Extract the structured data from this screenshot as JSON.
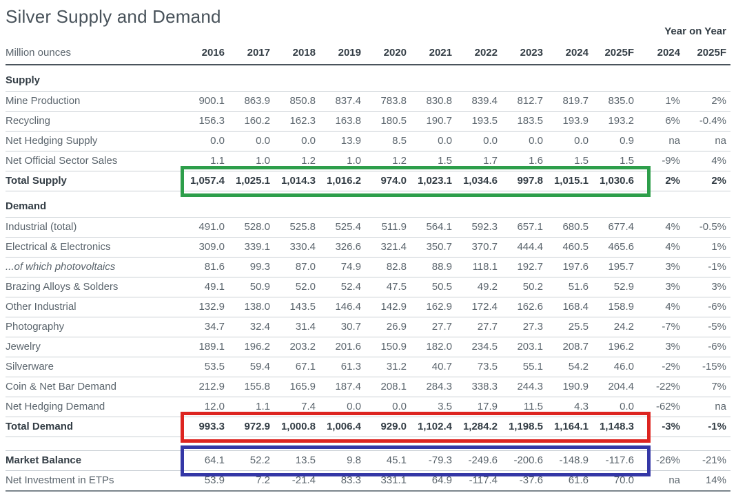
{
  "title": "Silver Supply and Demand",
  "units_label": "Million ounces",
  "year_on_year_label": "Year on Year",
  "chart_data": {
    "type": "table",
    "columns": [
      "2016",
      "2017",
      "2018",
      "2019",
      "2020",
      "2021",
      "2022",
      "2023",
      "2024",
      "2025F"
    ],
    "yoy_columns": [
      "2024",
      "2025F"
    ],
    "sections": [
      {
        "name": "Supply",
        "rows": [
          {
            "label": "Mine Production",
            "values": [
              "900.1",
              "863.9",
              "850.8",
              "837.4",
              "783.8",
              "830.8",
              "839.4",
              "812.7",
              "819.7",
              "835.0"
            ],
            "yoy": [
              "1%",
              "2%"
            ]
          },
          {
            "label": "Recycling",
            "values": [
              "156.3",
              "160.2",
              "162.3",
              "163.8",
              "180.5",
              "190.7",
              "193.5",
              "183.5",
              "193.9",
              "193.2"
            ],
            "yoy": [
              "6%",
              "-0.4%"
            ]
          },
          {
            "label": "Net Hedging Supply",
            "values": [
              "0.0",
              "0.0",
              "0.0",
              "13.9",
              "8.5",
              "0.0",
              "0.0",
              "0.0",
              "0.0",
              "0.9"
            ],
            "yoy": [
              "na",
              "na"
            ]
          },
          {
            "label": "Net Official Sector Sales",
            "values": [
              "1.1",
              "1.0",
              "1.2",
              "1.0",
              "1.2",
              "1.5",
              "1.7",
              "1.6",
              "1.5",
              "1.5"
            ],
            "yoy": [
              "-9%",
              "4%"
            ]
          },
          {
            "label": "Total Supply",
            "bold": true,
            "values": [
              "1,057.4",
              "1,025.1",
              "1,014.3",
              "1,016.2",
              "974.0",
              "1,023.1",
              "1,034.6",
              "997.8",
              "1,015.1",
              "1,030.6"
            ],
            "yoy": [
              "2%",
              "2%"
            ]
          }
        ]
      },
      {
        "name": "Demand",
        "rows": [
          {
            "label": "Industrial (total)",
            "values": [
              "491.0",
              "528.0",
              "525.8",
              "525.4",
              "511.9",
              "564.1",
              "592.3",
              "657.1",
              "680.5",
              "677.4"
            ],
            "yoy": [
              "4%",
              "-0.5%"
            ]
          },
          {
            "label": "Electrical & Electronics",
            "indent": true,
            "values": [
              "309.0",
              "339.1",
              "330.4",
              "326.6",
              "321.4",
              "350.7",
              "370.7",
              "444.4",
              "460.5",
              "465.6"
            ],
            "yoy": [
              "4%",
              "1%"
            ]
          },
          {
            "label": "...of which photovoltaics",
            "indent": true,
            "italic": true,
            "values": [
              "81.6",
              "99.3",
              "87.0",
              "74.9",
              "82.8",
              "88.9",
              "118.1",
              "192.7",
              "197.6",
              "195.7"
            ],
            "yoy": [
              "3%",
              "-1%"
            ]
          },
          {
            "label": "Brazing Alloys & Solders",
            "indent": true,
            "values": [
              "49.1",
              "50.9",
              "52.0",
              "52.4",
              "47.5",
              "50.5",
              "49.2",
              "50.2",
              "51.6",
              "52.9"
            ],
            "yoy": [
              "3%",
              "3%"
            ]
          },
          {
            "label": "Other Industrial",
            "indent": true,
            "values": [
              "132.9",
              "138.0",
              "143.5",
              "146.4",
              "142.9",
              "162.9",
              "172.4",
              "162.6",
              "168.4",
              "158.9"
            ],
            "yoy": [
              "4%",
              "-6%"
            ]
          },
          {
            "label": "Photography",
            "values": [
              "34.7",
              "32.4",
              "31.4",
              "30.7",
              "26.9",
              "27.7",
              "27.7",
              "27.3",
              "25.5",
              "24.2"
            ],
            "yoy": [
              "-7%",
              "-5%"
            ]
          },
          {
            "label": "Jewelry",
            "values": [
              "189.1",
              "196.2",
              "203.2",
              "201.6",
              "150.9",
              "182.0",
              "234.5",
              "203.1",
              "208.7",
              "196.2"
            ],
            "yoy": [
              "3%",
              "-6%"
            ]
          },
          {
            "label": "Silverware",
            "values": [
              "53.5",
              "59.4",
              "67.1",
              "61.3",
              "31.2",
              "40.7",
              "73.5",
              "55.1",
              "54.2",
              "46.0"
            ],
            "yoy": [
              "-2%",
              "-15%"
            ]
          },
          {
            "label": "Coin & Net Bar Demand",
            "values": [
              "212.9",
              "155.8",
              "165.9",
              "187.4",
              "208.1",
              "284.3",
              "338.3",
              "244.3",
              "190.9",
              "204.4"
            ],
            "yoy": [
              "-22%",
              "7%"
            ]
          },
          {
            "label": "Net Hedging Demand",
            "values": [
              "12.0",
              "1.1",
              "7.4",
              "0.0",
              "0.0",
              "3.5",
              "17.9",
              "11.5",
              "4.3",
              "0.0"
            ],
            "yoy": [
              "-62%",
              "na"
            ]
          },
          {
            "label": "Total Demand",
            "bold": true,
            "values": [
              "993.3",
              "972.9",
              "1,000.8",
              "1,006.4",
              "929.0",
              "1,102.4",
              "1,284.2",
              "1,198.5",
              "1,164.1",
              "1,148.3"
            ],
            "yoy": [
              "-3%",
              "-1%"
            ]
          }
        ]
      },
      {
        "name": "",
        "gap_before": true,
        "rows": [
          {
            "label": "Market Balance",
            "bold_label": true,
            "top_rule": true,
            "values": [
              "64.1",
              "52.2",
              "13.5",
              "9.8",
              "45.1",
              "-79.3",
              "-249.6",
              "-200.6",
              "-148.9",
              "-117.6"
            ],
            "yoy": [
              "-26%",
              "-21%"
            ]
          },
          {
            "label": "Net Investment in ETPs",
            "bottom_heavy": true,
            "values": [
              "53.9",
              "7.2",
              "-21.4",
              "83.3",
              "331.1",
              "64.9",
              "-117.4",
              "-37.6",
              "61.6",
              "70.0"
            ],
            "yoy": [
              "na",
              "14%"
            ]
          }
        ]
      }
    ]
  },
  "highlight_boxes": [
    {
      "name": "total-supply-highlight-box",
      "target": "Total Supply",
      "color": "#2d9e4a"
    },
    {
      "name": "total-demand-highlight-box",
      "target": "Total Demand",
      "color": "#dd2420"
    },
    {
      "name": "market-balance-highlight-box",
      "target": "Market Balance",
      "color": "#3437a6"
    }
  ],
  "colors": {
    "title_text": "#49535b",
    "bold_text": "#333d45",
    "body_text": "#5b656d",
    "row_rule": "#c9cfd4",
    "header_rule": "#4a545c",
    "green_box": "#2d9e4a",
    "red_box": "#dd2420",
    "blue_box": "#3437a6"
  }
}
